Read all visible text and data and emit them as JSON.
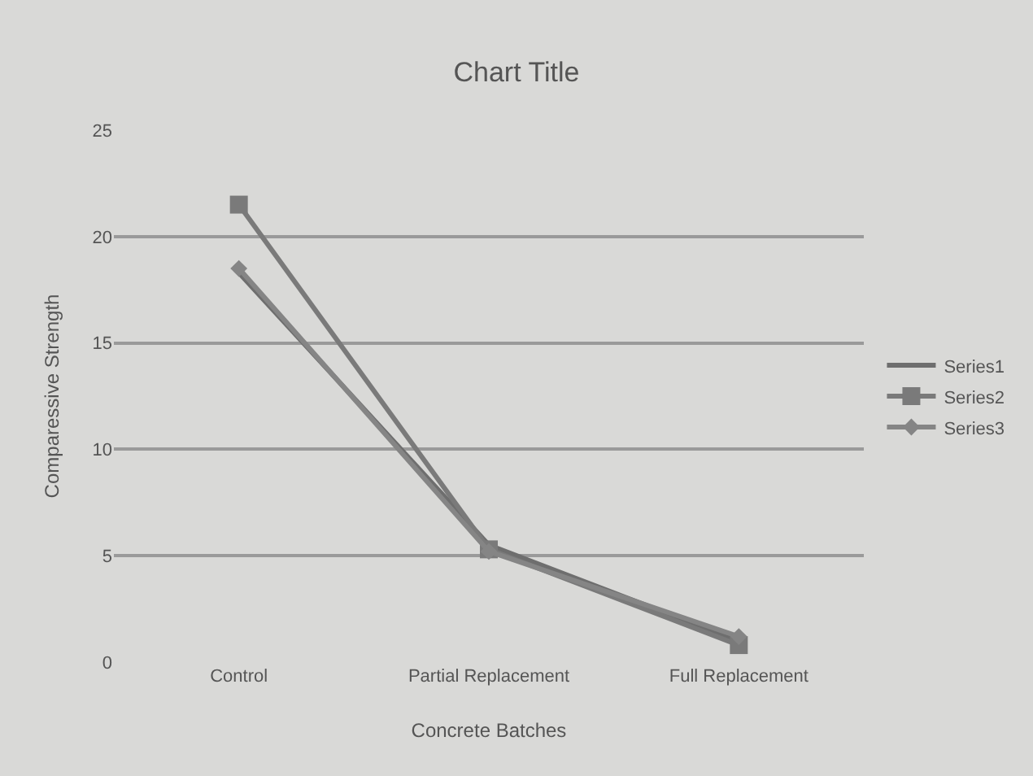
{
  "chart_data": {
    "type": "line",
    "title": "Chart Title",
    "xlabel": "Concrete Batches",
    "ylabel": "Comparessive Strength",
    "categories": [
      "Control",
      "Partial Replacement",
      "Full Replacement"
    ],
    "series": [
      {
        "name": "Series1",
        "color": "#6e6e6e",
        "marker": "none",
        "values": [
          18.3,
          5.5,
          1.0
        ]
      },
      {
        "name": "Series2",
        "color": "#7a7a7a",
        "marker": "square",
        "values": [
          21.5,
          5.3,
          0.8
        ]
      },
      {
        "name": "Series3",
        "color": "#858585",
        "marker": "diamond",
        "values": [
          18.5,
          5.2,
          1.2
        ]
      }
    ],
    "ylim": [
      0,
      25
    ],
    "yticks": [
      0,
      5,
      10,
      15,
      20,
      25
    ],
    "grid": "y",
    "legend": "right"
  }
}
